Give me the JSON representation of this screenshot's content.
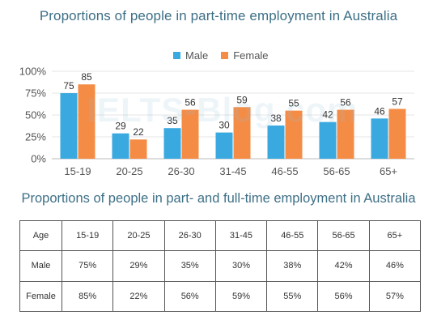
{
  "colors": {
    "male": "#3aa9e0",
    "female": "#f58c45",
    "title": "#3d6f86"
  },
  "chart_data": {
    "type": "bar",
    "title": "Proportions of people in part-time employment in Australia",
    "categories": [
      "15-19",
      "20-25",
      "26-30",
      "31-45",
      "46-55",
      "56-65",
      "65+"
    ],
    "series": [
      {
        "name": "Male",
        "values": [
          75,
          29,
          35,
          30,
          38,
          42,
          46
        ]
      },
      {
        "name": "Female",
        "values": [
          85,
          22,
          56,
          59,
          55,
          56,
          57
        ]
      }
    ],
    "ylim": [
      0,
      100
    ],
    "yticks": [
      "0%",
      "25%",
      "50%",
      "75%",
      "100%"
    ],
    "legend_position": "top",
    "grid": true
  },
  "watermark": "IELTS-Blog.com",
  "table": {
    "title": "Proportions of people in part- and full-time employment in Australia",
    "header": [
      "Age",
      "15-19",
      "20-25",
      "26-30",
      "31-45",
      "46-55",
      "56-65",
      "65+"
    ],
    "rows": [
      [
        "Male",
        "75%",
        "29%",
        "35%",
        "30%",
        "38%",
        "42%",
        "46%"
      ],
      [
        "Female",
        "85%",
        "22%",
        "56%",
        "59%",
        "55%",
        "56%",
        "57%"
      ]
    ]
  }
}
